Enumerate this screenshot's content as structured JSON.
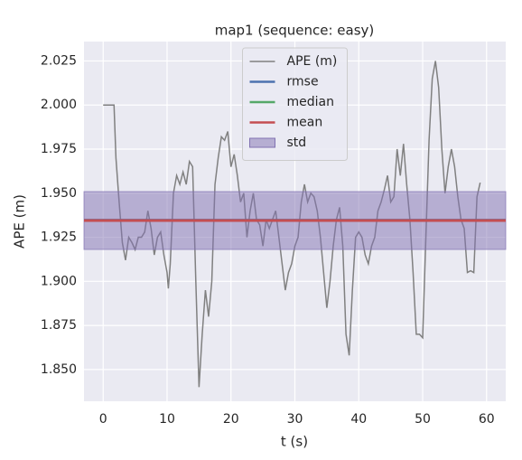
{
  "chart_data": {
    "type": "line",
    "title": "map1 (sequence: easy)",
    "xlabel": "t (s)",
    "ylabel": "APE (m)",
    "xlim": [
      -3,
      63
    ],
    "xticks": [
      0,
      10,
      20,
      30,
      40,
      50,
      60
    ],
    "ylim": [
      1.832,
      2.036
    ],
    "yticks": [
      {
        "value": 1.85,
        "label": "1.850"
      },
      {
        "value": 1.875,
        "label": "1.875"
      },
      {
        "value": 1.9,
        "label": "1.900"
      },
      {
        "value": 1.925,
        "label": "1.925"
      },
      {
        "value": 1.95,
        "label": "1.950"
      },
      {
        "value": 1.975,
        "label": "1.975"
      },
      {
        "value": 2.0,
        "label": "2.000"
      },
      {
        "value": 2.025,
        "label": "2.025"
      }
    ],
    "grid": true,
    "legend": "upper center",
    "series": [
      {
        "name": "APE (m)",
        "color": "#808080",
        "x": [
          0,
          1,
          1.7,
          2,
          2.5,
          3,
          3.5,
          4,
          4.5,
          5,
          5.5,
          6,
          6.5,
          7,
          7.5,
          8,
          8.5,
          9,
          9.5,
          10,
          10.2,
          10.5,
          11,
          11.5,
          12,
          12.5,
          13,
          13.5,
          14,
          14.5,
          15,
          15.5,
          16,
          16.5,
          17,
          17.5,
          18,
          18.5,
          19,
          19.5,
          20,
          20.5,
          21,
          21.5,
          22,
          22.5,
          23,
          23.5,
          24,
          24.5,
          25,
          25.5,
          26,
          26.5,
          27,
          27.5,
          28,
          28.5,
          29,
          29.5,
          30,
          30.5,
          31,
          31.5,
          32,
          32.5,
          33,
          33.5,
          34,
          34.5,
          35,
          35.5,
          36,
          36.5,
          37,
          37.5,
          38,
          38.5,
          39,
          39.5,
          40,
          40.5,
          41,
          41.5,
          42,
          42.5,
          43,
          43.5,
          44,
          44.5,
          45,
          45.5,
          46,
          46.5,
          47,
          47.5,
          48,
          48.5,
          49,
          49.5,
          50,
          50.5,
          51,
          51.5,
          52,
          52.5,
          53,
          53.5,
          54,
          54.5,
          55,
          55.5,
          56,
          56.5,
          57,
          57.5,
          58,
          58.5,
          59
        ],
        "values": [
          2.0,
          2.0,
          2.0,
          1.97,
          1.945,
          1.922,
          1.912,
          1.925,
          1.922,
          1.918,
          1.925,
          1.925,
          1.928,
          1.94,
          1.93,
          1.915,
          1.925,
          1.928,
          1.915,
          1.905,
          1.896,
          1.91,
          1.95,
          1.96,
          1.955,
          1.962,
          1.955,
          1.968,
          1.965,
          1.9,
          1.84,
          1.87,
          1.895,
          1.88,
          1.9,
          1.955,
          1.97,
          1.982,
          1.98,
          1.985,
          1.965,
          1.972,
          1.96,
          1.945,
          1.95,
          1.925,
          1.94,
          1.95,
          1.935,
          1.932,
          1.92,
          1.935,
          1.93,
          1.935,
          1.94,
          1.925,
          1.91,
          1.895,
          1.905,
          1.91,
          1.92,
          1.925,
          1.945,
          1.955,
          1.945,
          1.95,
          1.948,
          1.94,
          1.925,
          1.905,
          1.885,
          1.9,
          1.92,
          1.935,
          1.942,
          1.92,
          1.87,
          1.858,
          1.895,
          1.925,
          1.928,
          1.925,
          1.915,
          1.91,
          1.92,
          1.925,
          1.94,
          1.945,
          1.952,
          1.96,
          1.945,
          1.948,
          1.975,
          1.96,
          1.978,
          1.955,
          1.935,
          1.905,
          1.87,
          1.87,
          1.868,
          1.925,
          1.98,
          2.015,
          2.025,
          2.01,
          1.975,
          1.95,
          1.965,
          1.975,
          1.965,
          1.948,
          1.935,
          1.93,
          1.905,
          1.906,
          1.905,
          1.948,
          1.956
        ]
      }
    ],
    "hlines": [
      {
        "name": "rmse",
        "color": "#4c72b0",
        "value": 1.9347
      },
      {
        "name": "median",
        "color": "#55a868",
        "value": 1.9345
      },
      {
        "name": "mean",
        "color": "#c44e52",
        "value": 1.9345
      }
    ],
    "band": {
      "name": "std",
      "color": "#8172b2",
      "value": 0.0164
    }
  }
}
